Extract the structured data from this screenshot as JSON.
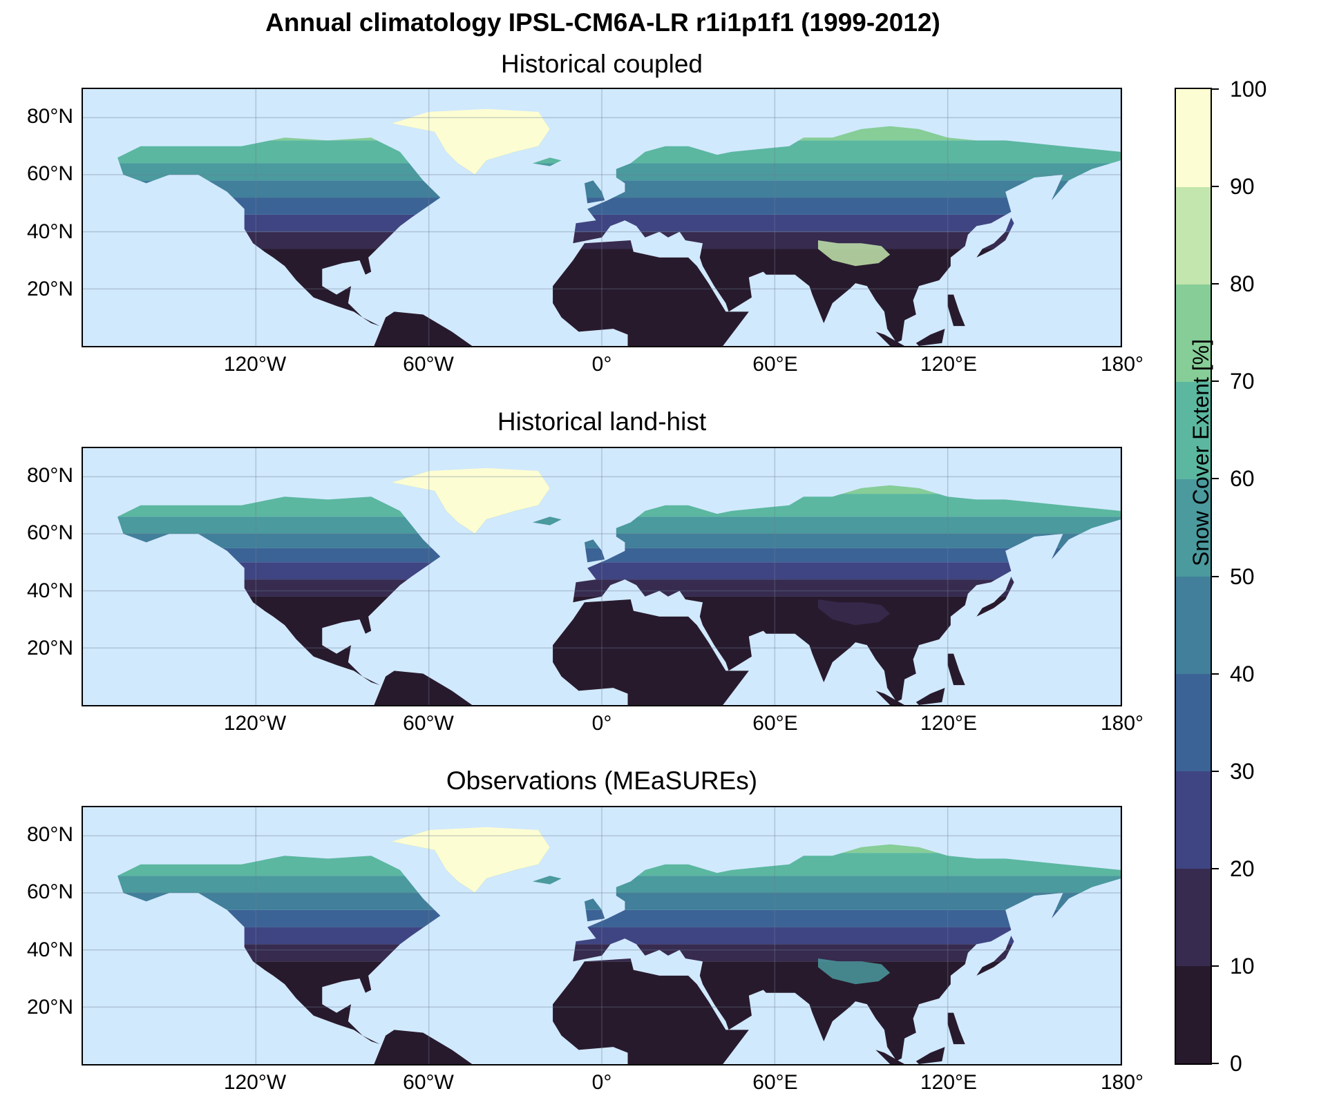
{
  "figure": {
    "suptitle": "Annual climatology IPSL-CM6A-LR r1i1p1f1 (1999-2012)"
  },
  "panels": [
    {
      "title": "Historical coupled"
    },
    {
      "title": "Historical land-hist"
    },
    {
      "title": "Observations (MEaSUREs)"
    }
  ],
  "axes": {
    "lat_ticks": [
      "80°N",
      "60°N",
      "40°N",
      "20°N"
    ],
    "lat_values": [
      80,
      60,
      40,
      20
    ],
    "lon_ticks": [
      "120°W",
      "60°W",
      "0°",
      "60°E",
      "120°E",
      "180°"
    ],
    "lon_values": [
      -120,
      -60,
      0,
      60,
      120,
      180
    ],
    "lon_range": [
      -180,
      180
    ],
    "lat_range": [
      0,
      90
    ]
  },
  "colorbar": {
    "label": "Snow Cover Extent [%]",
    "ticks": [
      "0",
      "10",
      "20",
      "30",
      "40",
      "50",
      "60",
      "70",
      "80",
      "90",
      "100"
    ],
    "colors": [
      "#281a2d",
      "#372b4f",
      "#3f4582",
      "#3c6395",
      "#417f9a",
      "#4a9a9e",
      "#5bb7a0",
      "#86cd97",
      "#c2e6ad",
      "#fdfdd3"
    ]
  },
  "colors": {
    "ocean": "#d1e9fd",
    "land_low": "#281a2d",
    "land_mid": "#417f9a",
    "land_high": "#5bb7a0",
    "ice": "#fdfdd3"
  }
}
